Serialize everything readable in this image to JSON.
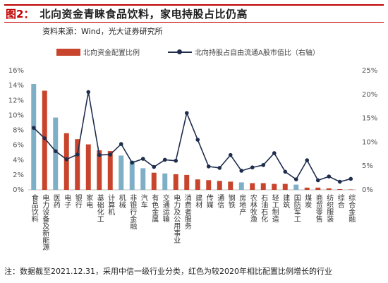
{
  "header": {
    "figure_no": "图2：",
    "title": "北向资金青睐食品饮料，家电持股占比仍高"
  },
  "source": "资料来源：Wind，光大证券研究所",
  "note": "注：数据截至2021.12.31，采用中信一级行业分类，红色为较2020年相比配置比例增长的行业",
  "colors": {
    "blue_bar": "#7fafc6",
    "red_bar": "#c8442c",
    "line": "#1f2d4d",
    "header_red": "#c00000"
  },
  "chart_data": {
    "type": "bar",
    "categories": [
      "食品饮料",
      "电力设备及新能源",
      "医药",
      "电子",
      "银行",
      "家电",
      "基础化工",
      "计算机",
      "机械",
      "非银行金融",
      "汽车",
      "有色金属",
      "交通运输",
      "电力及公用事业",
      "消费者服务",
      "建材",
      "传媒",
      "通信",
      "钢铁",
      "房地产",
      "农林牧渔",
      "石油石化",
      "轻工制造",
      "建筑",
      "国防军工",
      "煤炭",
      "商贸零售",
      "纺织服装",
      "综合",
      "综合金融"
    ],
    "series": [
      {
        "name": "北向资金配置比例",
        "axis": "left",
        "render": "bar",
        "values": [
          14.2,
          13.3,
          9.7,
          7.6,
          6.8,
          6.1,
          5.3,
          5.2,
          4.6,
          3.9,
          2.9,
          2.3,
          2.2,
          2.1,
          2.0,
          1.4,
          1.3,
          1.2,
          1.1,
          1.0,
          0.9,
          0.9,
          0.8,
          0.8,
          0.7,
          0.3,
          0.3,
          0.2,
          0.1,
          0.05
        ],
        "colors": [
          "blue",
          "red",
          "blue",
          "red",
          "red",
          "red",
          "red",
          "red",
          "blue",
          "blue",
          "blue",
          "red",
          "blue",
          "red",
          "red",
          "red",
          "red",
          "red",
          "red",
          "blue",
          "red",
          "red",
          "red",
          "red",
          "blue",
          "red",
          "red",
          "red",
          "red",
          "red"
        ]
      },
      {
        "name": "北向持股占自由流通A股市值比（右轴）",
        "axis": "right",
        "render": "line",
        "values": [
          13.0,
          10.8,
          8.1,
          6.4,
          7.4,
          20.5,
          7.3,
          7.4,
          9.6,
          5.7,
          6.5,
          4.8,
          6.3,
          6.1,
          16.1,
          10.5,
          4.9,
          4.6,
          7.3,
          4.0,
          4.7,
          5.2,
          7.7,
          3.8,
          2.2,
          6.2,
          2.0,
          2.8,
          1.7,
          2.3
        ]
      }
    ],
    "y_left": {
      "min": 0,
      "max": 16,
      "ticks": [
        "0%",
        "2%",
        "4%",
        "6%",
        "8%",
        "10%",
        "12%",
        "14%",
        "16%"
      ]
    },
    "y_right": {
      "min": 0,
      "max": 25,
      "ticks": [
        "0%",
        "5%",
        "10%",
        "15%",
        "20%",
        "25%"
      ]
    },
    "legend_position": "top",
    "grid": false
  }
}
